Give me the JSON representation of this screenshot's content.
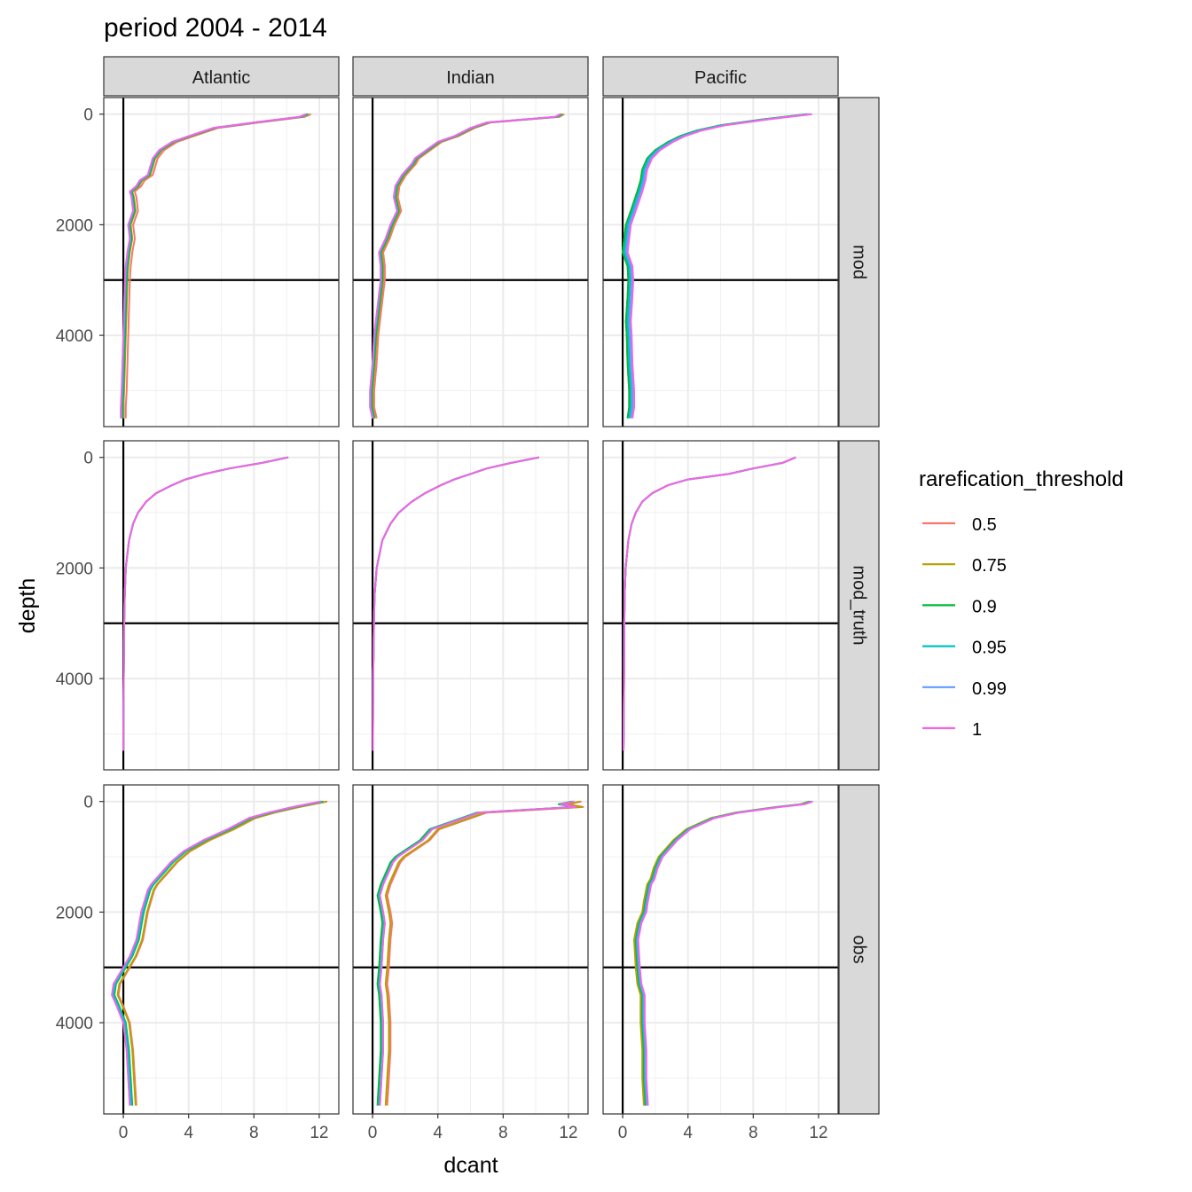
{
  "chart_data": {
    "type": "line",
    "title": "period 2004 - 2014",
    "xlabel": "dcant",
    "ylabel": "depth",
    "xlim": [
      -1.2,
      13.2
    ],
    "ylim": [
      -300,
      5650
    ],
    "y_reversed": true,
    "x_ticks": [
      0,
      4,
      8,
      12
    ],
    "y_ticks": [
      0,
      2000,
      4000
    ],
    "reference_lines": {
      "vertical_x": 0,
      "horizontal_y": 3000
    },
    "columns": [
      "Atlantic",
      "Indian",
      "Pacific"
    ],
    "rows": [
      "mod",
      "mod_truth",
      "obs"
    ],
    "legend": {
      "title": "rarefication_threshold",
      "position": "right",
      "entries": [
        "0.5",
        "0.75",
        "0.9",
        "0.95",
        "0.99",
        "1"
      ],
      "colors": [
        "#F8766D",
        "#B79F00",
        "#00BA38",
        "#00BFC4",
        "#619CFF",
        "#F564E3"
      ]
    },
    "grid": true,
    "panels": {
      "mod": {
        "Atlantic": {
          "depth": [
            0,
            50,
            150,
            250,
            400,
            500,
            650,
            800,
            900,
            1100,
            1200,
            1300,
            1400,
            1500,
            1750,
            2000,
            2250,
            2500,
            2750,
            3000,
            3500,
            4000,
            4500,
            5000,
            5300,
            5500
          ],
          "dcant": [
            11.2,
            10.8,
            8.0,
            5.5,
            4.0,
            3.0,
            2.2,
            1.8,
            1.7,
            1.5,
            1.0,
            0.8,
            0.4,
            0.5,
            0.6,
            0.3,
            0.4,
            0.25,
            0.15,
            0.1,
            0.05,
            0.0,
            -0.05,
            -0.1,
            -0.15,
            -0.15
          ],
          "offsets": [
            0.3,
            0.15,
            0.1,
            0.05,
            0.0,
            0.0
          ]
        },
        "Indian": {
          "depth": [
            0,
            50,
            150,
            250,
            400,
            500,
            650,
            800,
            900,
            1100,
            1200,
            1300,
            1500,
            1750,
            2000,
            2250,
            2500,
            2750,
            3000,
            3500,
            4000,
            4500,
            5000,
            5300,
            5500
          ],
          "dcant": [
            11.5,
            11.2,
            7.0,
            6.0,
            5.0,
            4.0,
            3.3,
            2.6,
            2.4,
            1.8,
            1.6,
            1.4,
            1.3,
            1.5,
            1.1,
            0.8,
            0.4,
            0.5,
            0.5,
            0.3,
            0.1,
            0.0,
            -0.15,
            -0.15,
            0.0
          ],
          "offsets": [
            0.25,
            0.15,
            0.1,
            0.05,
            0.0,
            0.0
          ]
        },
        "Pacific": {
          "depth": [
            0,
            100,
            200,
            300,
            400,
            500,
            650,
            800,
            1000,
            1200,
            1400,
            1750,
            2000,
            2250,
            2500,
            2750,
            3000,
            3300,
            3750,
            4000,
            4500,
            5000,
            5300,
            5500
          ],
          "dcant": [
            11.3,
            8.5,
            6.0,
            4.5,
            3.5,
            2.8,
            2.0,
            1.5,
            1.2,
            1.1,
            0.9,
            0.5,
            0.2,
            0.1,
            0.0,
            0.3,
            0.35,
            0.3,
            0.2,
            0.25,
            0.3,
            0.4,
            0.4,
            0.3
          ],
          "offsets": [
            0.0,
            0.0,
            0.0,
            0.1,
            0.2,
            0.3
          ]
        }
      },
      "mod_truth": {
        "Atlantic": {
          "depth": [
            0,
            100,
            200,
            300,
            400,
            500,
            650,
            800,
            1000,
            1200,
            1500,
            2000,
            2500,
            3000,
            4000,
            5000,
            5300
          ],
          "dcant": [
            10.1,
            8.5,
            6.5,
            5.0,
            3.8,
            3.0,
            2.0,
            1.4,
            0.9,
            0.6,
            0.35,
            0.15,
            0.08,
            0.05,
            0.02,
            0.0,
            0.0
          ],
          "offsets": [
            0,
            0,
            0,
            0,
            0,
            0
          ]
        },
        "Indian": {
          "depth": [
            0,
            100,
            200,
            300,
            400,
            500,
            650,
            800,
            1000,
            1200,
            1500,
            2000,
            2500,
            3000,
            4000,
            5000,
            5300
          ],
          "dcant": [
            10.2,
            8.5,
            7.0,
            6.0,
            5.0,
            4.2,
            3.2,
            2.4,
            1.6,
            1.1,
            0.6,
            0.25,
            0.12,
            0.08,
            0.04,
            0.02,
            0.02
          ],
          "offsets": [
            0,
            0,
            0,
            0,
            0,
            0
          ]
        },
        "Pacific": {
          "depth": [
            0,
            100,
            200,
            300,
            400,
            500,
            650,
            800,
            1000,
            1200,
            1500,
            2000,
            2500,
            3000,
            4000,
            5000,
            5300
          ],
          "dcant": [
            10.6,
            9.8,
            8.0,
            6.5,
            4.0,
            2.8,
            1.8,
            1.2,
            0.8,
            0.55,
            0.35,
            0.18,
            0.12,
            0.1,
            0.08,
            0.06,
            0.05
          ],
          "offsets": [
            0,
            0,
            0,
            0,
            0,
            0
          ]
        }
      },
      "obs": {
        "Atlantic": {
          "depth": [
            0,
            100,
            200,
            300,
            500,
            700,
            900,
            1100,
            1300,
            1500,
            1600,
            2000,
            2500,
            2800,
            3000,
            3300,
            3500,
            3700,
            4000,
            4500,
            5000,
            5500
          ],
          "dcant": [
            12.2,
            10.5,
            9.0,
            7.8,
            6.5,
            5.0,
            3.8,
            3.0,
            2.4,
            1.8,
            1.6,
            1.2,
            0.9,
            0.5,
            0.1,
            -0.5,
            -0.6,
            -0.3,
            0.1,
            0.3,
            0.4,
            0.5
          ],
          "offsets": [
            0.3,
            0.25,
            0.05,
            0.0,
            -0.1,
            -0.1
          ]
        },
        "Indian": {
          "depth": [
            0,
            50,
            100,
            200,
            500,
            700,
            900,
            1000,
            1100,
            1300,
            1500,
            1700,
            2000,
            2200,
            2500,
            3000,
            3300,
            3500,
            4000,
            4500,
            5000,
            5500
          ],
          "dcant": [
            12.3,
            11.5,
            12.4,
            6.5,
            3.6,
            3.0,
            2.0,
            1.5,
            1.2,
            0.9,
            0.6,
            0.4,
            0.6,
            0.7,
            0.6,
            0.5,
            0.4,
            0.5,
            0.6,
            0.6,
            0.5,
            0.4
          ],
          "offsets": [
            0.5,
            0.4,
            -0.1,
            0.0,
            0.05,
            0.05
          ]
        },
        "Pacific": {
          "depth": [
            0,
            50,
            100,
            200,
            300,
            500,
            700,
            1000,
            1200,
            1400,
            1500,
            1800,
            2000,
            2200,
            2500,
            3000,
            3300,
            3500,
            4000,
            4500,
            5000,
            5500
          ],
          "dcant": [
            11.5,
            11.0,
            9.5,
            7.0,
            5.5,
            4.0,
            3.2,
            2.3,
            2.0,
            1.8,
            1.6,
            1.4,
            1.3,
            1.0,
            0.8,
            0.9,
            1.0,
            1.2,
            1.2,
            1.3,
            1.3,
            1.4
          ],
          "offsets": [
            0.0,
            -0.1,
            0.0,
            0.05,
            0.1,
            0.15
          ]
        }
      }
    }
  }
}
